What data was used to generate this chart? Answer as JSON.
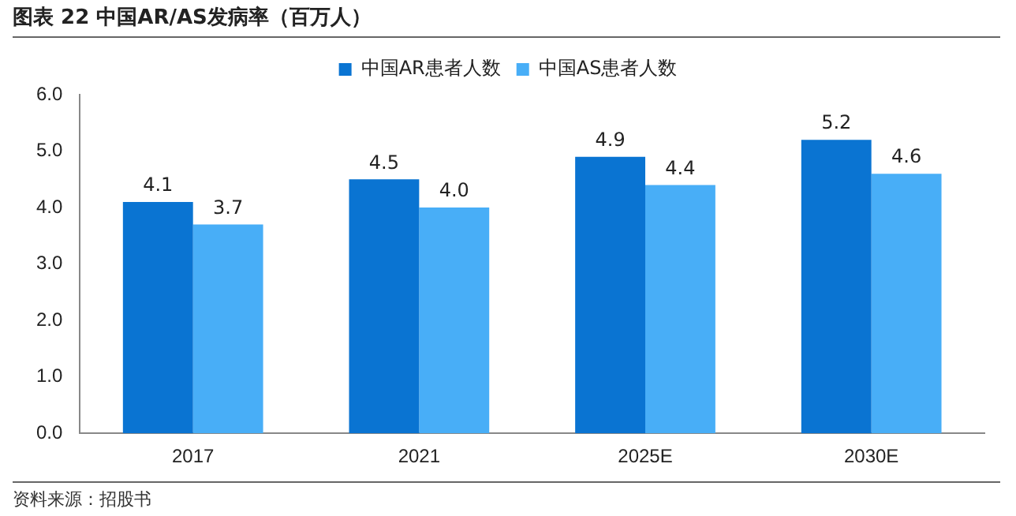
{
  "chart_data": {
    "type": "bar",
    "title": "图表 22 中国AR/AS发病率（百万人）",
    "categories": [
      "2017",
      "2021",
      "2025E",
      "2030E"
    ],
    "series": [
      {
        "name": "中国AR患者人数",
        "color": "#0a74d2",
        "values": [
          4.1,
          4.5,
          4.9,
          5.2
        ],
        "value_labels": [
          "4.1",
          "4.5",
          "4.9",
          "5.2"
        ]
      },
      {
        "name": "中国AS患者人数",
        "color": "#48aef7",
        "values": [
          3.7,
          4.0,
          4.4,
          4.6
        ],
        "value_labels": [
          "3.7",
          "4.0",
          "4.4",
          "4.6"
        ]
      }
    ],
    "ylim": [
      0,
      6
    ],
    "yticks": [
      {
        "value": 0,
        "label": "0.0"
      },
      {
        "value": 1,
        "label": "1.0"
      },
      {
        "value": 2,
        "label": "2.0"
      },
      {
        "value": 3,
        "label": "3.0"
      },
      {
        "value": 4,
        "label": "4.0"
      },
      {
        "value": 5,
        "label": "5.0"
      },
      {
        "value": 6,
        "label": "6.0"
      }
    ],
    "grid": false,
    "legend": "top",
    "annotations": [
      "资料来源：招股书"
    ]
  }
}
